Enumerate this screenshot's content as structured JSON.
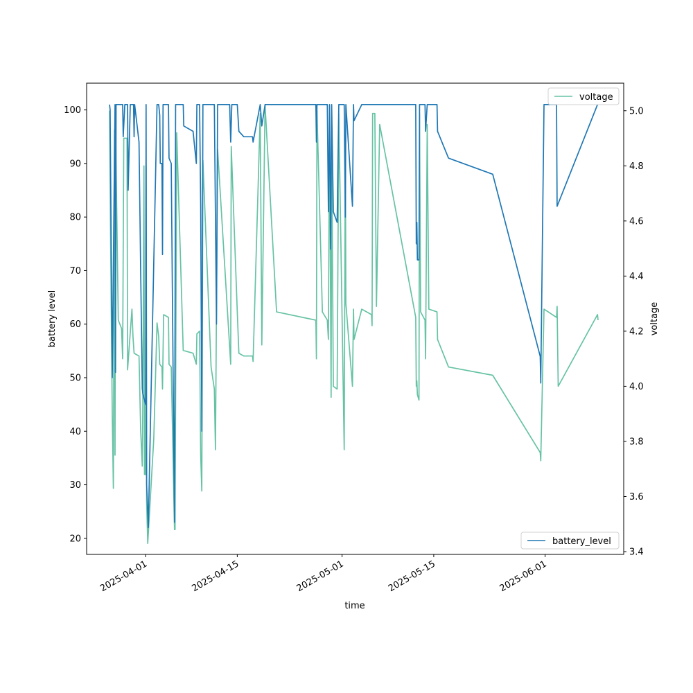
{
  "chart_data": {
    "type": "line",
    "xlabel": "time",
    "ylabel_left": "battery level",
    "ylabel_right": "voltage",
    "x_ticks": [
      "2025-04-01",
      "2025-04-15",
      "2025-05-01",
      "2025-05-15",
      "2025-06-01"
    ],
    "xlim": [
      "2025-03-23",
      "2025-06-13"
    ],
    "ylim_left": [
      17,
      105
    ],
    "ylim_right": [
      3.39,
      5.1
    ],
    "y_ticks_left": [
      20,
      30,
      40,
      50,
      60,
      70,
      80,
      90,
      100
    ],
    "y_ticks_right": [
      3.4,
      3.6,
      3.8,
      4.0,
      4.2,
      4.4,
      4.6,
      4.8,
      5.0
    ],
    "series": [
      {
        "name": "battery_level",
        "axis": "left",
        "color": "#1f77b4",
        "legend_loc": "lower right",
        "points": [
          [
            "2025-03-26 12:00",
            101
          ],
          [
            "2025-03-26 14:00",
            100
          ],
          [
            "2025-03-26 22:00",
            50
          ],
          [
            "2025-03-27 06:00",
            92
          ],
          [
            "2025-03-27 08:00",
            101
          ],
          [
            "2025-03-27 10:00",
            51
          ],
          [
            "2025-03-27 12:00",
            101
          ],
          [
            "2025-03-28 12:00",
            101
          ],
          [
            "2025-03-28 14:00",
            95
          ],
          [
            "2025-03-28 20:00",
            101
          ],
          [
            "2025-03-29 06:00",
            101
          ],
          [
            "2025-03-29 08:00",
            85
          ],
          [
            "2025-03-29 16:00",
            101
          ],
          [
            "2025-03-30 04:00",
            101
          ],
          [
            "2025-03-30 06:00",
            95
          ],
          [
            "2025-03-30 08:00",
            101
          ],
          [
            "2025-03-31 00:00",
            94
          ],
          [
            "2025-03-31 06:00",
            70
          ],
          [
            "2025-03-31 12:00",
            48
          ],
          [
            "2025-03-31 14:00",
            47
          ],
          [
            "2025-04-01 00:00",
            45
          ],
          [
            "2025-04-01 02:00",
            101
          ],
          [
            "2025-04-01 04:00",
            30
          ],
          [
            "2025-04-01 10:00",
            22
          ],
          [
            "2025-04-02 18:00",
            101
          ],
          [
            "2025-04-03 00:00",
            101
          ],
          [
            "2025-04-03 04:00",
            99
          ],
          [
            "2025-04-03 06:00",
            90
          ],
          [
            "2025-04-03 12:00",
            90
          ],
          [
            "2025-04-03 14:00",
            73
          ],
          [
            "2025-04-03 16:00",
            101
          ],
          [
            "2025-04-04 12:00",
            101
          ],
          [
            "2025-04-04 14:00",
            91
          ],
          [
            "2025-04-04 22:00",
            90
          ],
          [
            "2025-04-05 06:00",
            45
          ],
          [
            "2025-04-05 10:00",
            23
          ],
          [
            "2025-04-05 14:00",
            101
          ],
          [
            "2025-04-06 18:00",
            101
          ],
          [
            "2025-04-06 20:00",
            97
          ],
          [
            "2025-04-08 06:00",
            96
          ],
          [
            "2025-04-08 18:00",
            90
          ],
          [
            "2025-04-08 20:00",
            101
          ],
          [
            "2025-04-09 06:00",
            101
          ],
          [
            "2025-04-09 10:00",
            82
          ],
          [
            "2025-04-09 14:00",
            40
          ],
          [
            "2025-04-09 18:00",
            101
          ],
          [
            "2025-04-11 12:00",
            101
          ],
          [
            "2025-04-11 16:00",
            80
          ],
          [
            "2025-04-11 20:00",
            60
          ],
          [
            "2025-04-12 00:00",
            101
          ],
          [
            "2025-04-12 04:00",
            101
          ],
          [
            "2025-04-13 20:00",
            101
          ],
          [
            "2025-04-14 00:00",
            94
          ],
          [
            "2025-04-14 04:00",
            101
          ],
          [
            "2025-04-15 00:00",
            101
          ],
          [
            "2025-04-15 06:00",
            96
          ],
          [
            "2025-04-16 00:00",
            95
          ],
          [
            "2025-04-17 08:00",
            95
          ],
          [
            "2025-04-17 10:00",
            94
          ],
          [
            "2025-04-18 12:00",
            101
          ],
          [
            "2025-04-18 18:00",
            97
          ],
          [
            "2025-04-19 06:00",
            101
          ],
          [
            "2025-04-27 00:00",
            101
          ],
          [
            "2025-04-27 02:00",
            94
          ],
          [
            "2025-04-27 04:00",
            101
          ],
          [
            "2025-04-28 18:00",
            101
          ],
          [
            "2025-04-28 22:00",
            81
          ],
          [
            "2025-04-29 02:00",
            101
          ],
          [
            "2025-04-29 06:00",
            74
          ],
          [
            "2025-04-29 10:00",
            101
          ],
          [
            "2025-04-29 16:00",
            81
          ],
          [
            "2025-04-30 06:00",
            79
          ],
          [
            "2025-04-30 12:00",
            101
          ],
          [
            "2025-05-01 08:00",
            101
          ],
          [
            "2025-05-01 12:00",
            80
          ],
          [
            "2025-05-01 14:00",
            101
          ],
          [
            "2025-05-02 14:00",
            82
          ],
          [
            "2025-05-02 18:00",
            101
          ],
          [
            "2025-05-02 20:00",
            98
          ],
          [
            "2025-05-04 00:00",
            101
          ],
          [
            "2025-05-12 06:00",
            101
          ],
          [
            "2025-05-12 08:00",
            75
          ],
          [
            "2025-05-12 10:00",
            79
          ],
          [
            "2025-05-12 12:00",
            72
          ],
          [
            "2025-05-12 18:00",
            72
          ],
          [
            "2025-05-12 20:00",
            101
          ],
          [
            "2025-05-13 00:00",
            101
          ],
          [
            "2025-05-13 16:00",
            101
          ],
          [
            "2025-05-13 18:00",
            96
          ],
          [
            "2025-05-14 00:00",
            101
          ],
          [
            "2025-05-15 12:00",
            101
          ],
          [
            "2025-05-15 14:00",
            96
          ],
          [
            "2025-05-17 06:00",
            91
          ],
          [
            "2025-05-24 00:00",
            88
          ],
          [
            "2025-05-31 06:00",
            54
          ],
          [
            "2025-05-31 08:00",
            49
          ],
          [
            "2025-05-31 20:00",
            101
          ],
          [
            "2025-06-02 18:00",
            101
          ],
          [
            "2025-06-02 20:00",
            82
          ],
          [
            "2025-06-09 00:00",
            101
          ]
        ]
      },
      {
        "name": "voltage",
        "axis": "right",
        "color": "#66c2a5",
        "legend_loc": "upper right",
        "points": [
          [
            "2025-03-26 12:00",
            5.0
          ],
          [
            "2025-03-26 16:00",
            4.5
          ],
          [
            "2025-03-26 22:00",
            3.9
          ],
          [
            "2025-03-27 02:00",
            3.63
          ],
          [
            "2025-03-27 06:00",
            4.93
          ],
          [
            "2025-03-27 08:00",
            3.75
          ],
          [
            "2025-03-27 10:00",
            4.95
          ],
          [
            "2025-03-27 20:00",
            4.24
          ],
          [
            "2025-03-28 08:00",
            4.21
          ],
          [
            "2025-03-28 12:00",
            4.1
          ],
          [
            "2025-03-28 16:00",
            4.9
          ],
          [
            "2025-03-29 04:00",
            4.9
          ],
          [
            "2025-03-29 06:00",
            4.06
          ],
          [
            "2025-03-29 22:00",
            4.28
          ],
          [
            "2025-03-30 02:00",
            4.18
          ],
          [
            "2025-03-30 04:00",
            4.15
          ],
          [
            "2025-03-30 06:00",
            4.12
          ],
          [
            "2025-03-31 00:00",
            4.11
          ],
          [
            "2025-03-31 06:00",
            3.84
          ],
          [
            "2025-03-31 12:00",
            3.71
          ],
          [
            "2025-03-31 14:00",
            3.94
          ],
          [
            "2025-03-31 18:00",
            4.8
          ],
          [
            "2025-03-31 20:00",
            3.68
          ],
          [
            "2025-04-01 00:00",
            3.68
          ],
          [
            "2025-04-01 02:00",
            4.8
          ],
          [
            "2025-04-01 04:00",
            3.58
          ],
          [
            "2025-04-01 08:00",
            3.43
          ],
          [
            "2025-04-02 06:00",
            3.81
          ],
          [
            "2025-04-02 18:00",
            4.23
          ],
          [
            "2025-04-03 00:00",
            4.18
          ],
          [
            "2025-04-03 04:00",
            4.08
          ],
          [
            "2025-04-03 12:00",
            4.07
          ],
          [
            "2025-04-03 14:00",
            3.99
          ],
          [
            "2025-04-03 18:00",
            4.26
          ],
          [
            "2025-04-04 12:00",
            4.25
          ],
          [
            "2025-04-04 14:00",
            4.08
          ],
          [
            "2025-04-04 22:00",
            4.07
          ],
          [
            "2025-04-05 10:00",
            3.48
          ],
          [
            "2025-04-05 12:00",
            3.48
          ],
          [
            "2025-04-05 18:00",
            4.92
          ],
          [
            "2025-04-06 18:00",
            4.13
          ],
          [
            "2025-04-08 06:00",
            4.12
          ],
          [
            "2025-04-08 18:00",
            4.08
          ],
          [
            "2025-04-08 20:00",
            4.19
          ],
          [
            "2025-04-09 06:00",
            4.2
          ],
          [
            "2025-04-09 10:00",
            3.75
          ],
          [
            "2025-04-09 14:00",
            3.62
          ],
          [
            "2025-04-09 18:00",
            4.82
          ],
          [
            "2025-04-11 00:00",
            4.07
          ],
          [
            "2025-04-11 12:00",
            3.99
          ],
          [
            "2025-04-11 16:00",
            3.77
          ],
          [
            "2025-04-12 00:00",
            4.86
          ],
          [
            "2025-04-14 00:00",
            4.08
          ],
          [
            "2025-04-14 02:00",
            4.87
          ],
          [
            "2025-04-15 00:00",
            4.27
          ],
          [
            "2025-04-15 06:00",
            4.12
          ],
          [
            "2025-04-16 00:00",
            4.11
          ],
          [
            "2025-04-17 08:00",
            4.11
          ],
          [
            "2025-04-17 10:00",
            4.09
          ],
          [
            "2025-04-18 12:00",
            4.99
          ],
          [
            "2025-04-18 18:00",
            4.15
          ],
          [
            "2025-04-19 06:00",
            5.02
          ],
          [
            "2025-04-21 00:00",
            4.27
          ],
          [
            "2025-04-27 00:00",
            4.24
          ],
          [
            "2025-04-27 02:00",
            4.1
          ],
          [
            "2025-04-27 04:00",
            5.0
          ],
          [
            "2025-04-28 00:00",
            4.27
          ],
          [
            "2025-04-28 18:00",
            4.24
          ],
          [
            "2025-04-28 22:00",
            4.17
          ],
          [
            "2025-04-29 02:00",
            4.98
          ],
          [
            "2025-04-29 08:00",
            3.96
          ],
          [
            "2025-04-29 10:00",
            4.9
          ],
          [
            "2025-04-29 16:00",
            4.0
          ],
          [
            "2025-04-30 06:00",
            3.99
          ],
          [
            "2025-04-30 12:00",
            4.99
          ],
          [
            "2025-05-01 08:00",
            3.77
          ],
          [
            "2025-05-01 12:00",
            4.9
          ],
          [
            "2025-05-01 14:00",
            4.3
          ],
          [
            "2025-05-02 14:00",
            4.0
          ],
          [
            "2025-05-02 18:00",
            4.28
          ],
          [
            "2025-05-02 20:00",
            4.17
          ],
          [
            "2025-05-04 00:00",
            4.28
          ],
          [
            "2025-05-05 12:00",
            4.26
          ],
          [
            "2025-05-05 14:00",
            4.22
          ],
          [
            "2025-05-05 16:00",
            4.99
          ],
          [
            "2025-05-06 00:00",
            4.99
          ],
          [
            "2025-05-06 06:00",
            4.29
          ],
          [
            "2025-05-06 18:00",
            4.95
          ],
          [
            "2025-05-12 06:00",
            4.25
          ],
          [
            "2025-05-12 08:00",
            4.0
          ],
          [
            "2025-05-12 10:00",
            4.02
          ],
          [
            "2025-05-12 12:00",
            3.97
          ],
          [
            "2025-05-12 18:00",
            3.95
          ],
          [
            "2025-05-12 20:00",
            4.99
          ],
          [
            "2025-05-13 00:00",
            4.27
          ],
          [
            "2025-05-13 16:00",
            4.24
          ],
          [
            "2025-05-13 18:00",
            4.1
          ],
          [
            "2025-05-14 00:00",
            4.95
          ],
          [
            "2025-05-14 06:00",
            4.28
          ],
          [
            "2025-05-15 12:00",
            4.27
          ],
          [
            "2025-05-15 14:00",
            4.17
          ],
          [
            "2025-05-17 06:00",
            4.07
          ],
          [
            "2025-05-24 00:00",
            4.04
          ],
          [
            "2025-05-31 06:00",
            3.76
          ],
          [
            "2025-05-31 08:00",
            3.73
          ],
          [
            "2025-05-31 20:00",
            4.28
          ],
          [
            "2025-06-02 18:00",
            4.25
          ],
          [
            "2025-06-02 20:00",
            4.29
          ],
          [
            "2025-06-03 00:00",
            4.0
          ],
          [
            "2025-06-09 00:00",
            4.26
          ],
          [
            "2025-06-09 02:00",
            4.24
          ]
        ]
      }
    ]
  }
}
